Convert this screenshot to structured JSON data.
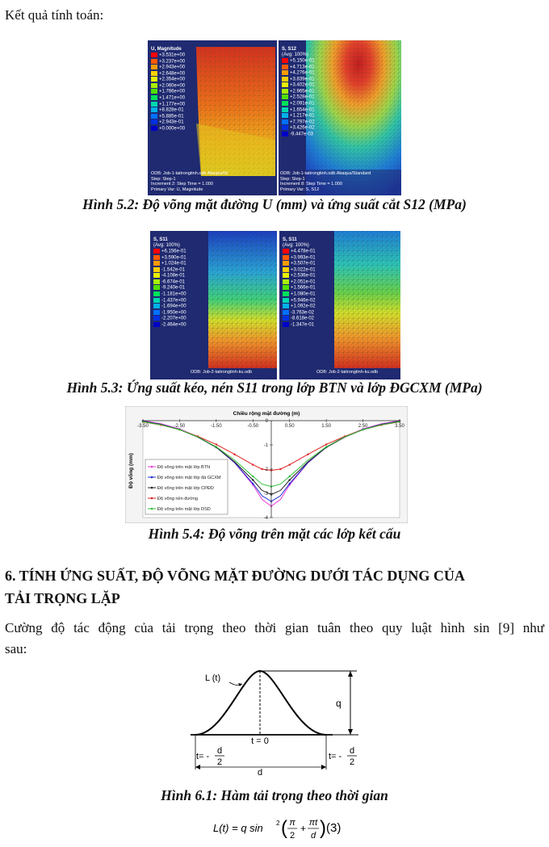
{
  "intro_text": "Kết quả tính toán:",
  "figure_5_2": {
    "caption": "Hình 5.2: Độ võng mặt đường U (mm) và ứng suất cắt S12 (MPa)",
    "left_panel": {
      "title": "U, Magnitude",
      "values": [
        "+3.531e+00",
        "+3.237e+00",
        "+2.943e+00",
        "+2.648e+00",
        "+2.354e+00",
        "+2.060e+00",
        "+1.766e+00",
        "+1.471e+00",
        "+1.177e+00",
        "+8.828e-01",
        "+5.885e-01",
        "+2.943e-01",
        "+0.000e+00"
      ],
      "footer": [
        "ODB: Job-1-taitrongtinh.odb    Abaqus/St",
        "Step: Step-1",
        "Increment    2: Step Time =   1.000",
        "Primary Var: U, Magnitude"
      ]
    },
    "right_panel": {
      "title": "S, S12",
      "subtitle": "(Avg: 100%)",
      "values": [
        "+5.150e-01",
        "+4.713e-01",
        "+4.276e-01",
        "+3.839e-01",
        "+3.402e-01",
        "+2.965e-01",
        "+2.528e-01",
        "+2.091e-01",
        "+1.654e-01",
        "+1.217e-01",
        "+7.797e-02",
        "+3.426e-02",
        "-9.447e-03"
      ],
      "footer": [
        "ODB: Job-1-taitrongtinh.odb    Abaqus/Standard",
        "Step: Step-1",
        "Increment    8: Step Time =   1.000",
        "Primary Var: S, S12"
      ]
    }
  },
  "figure_5_3": {
    "caption": "Hình 5.3: Ứng suất kéo, nén S11 trong lớp BTN và lớp ĐGCXM (MPa)",
    "left_panel": {
      "title": "S, S11",
      "subtitle": "(Avg: 100%)",
      "values": [
        "+6.156e-01",
        "+3.590e-01",
        "+1.024e-01",
        "-1.542e-01",
        "-4.108e-01",
        "-6.674e-01",
        "-9.240e-01",
        "-1.181e+00",
        "-1.437e+00",
        "-1.694e+00",
        "-1.950e+00",
        "-2.207e+00",
        "-2.464e+00"
      ],
      "footer": [
        "ODB: Job-2-taitrongtinh-ku.odb"
      ]
    },
    "right_panel": {
      "title": "S, S11",
      "subtitle": "(Avg: 100%)",
      "values": [
        "+4.478e-01",
        "+3.993e-01",
        "+3.507e-01",
        "+3.022e-01",
        "+2.536e-01",
        "+2.051e-01",
        "+1.566e-01",
        "+1.080e-01",
        "+5.946e-02",
        "+1.092e-02",
        "-3.763e-02",
        "-8.618e-02",
        "-1.347e-01"
      ],
      "footer": [
        "ODB: Job-2-taitrongtinh-ku.odb"
      ]
    }
  },
  "chart_data": {
    "type": "line",
    "title": "Chiều rộng mặt đường (m)",
    "xlabel": "",
    "ylabel": "Độ võng (mm)",
    "xlim": [
      -3.5,
      3.5
    ],
    "ylim": [
      -4,
      0
    ],
    "x_ticks": [
      "-3.50",
      "-2.50",
      "-1.50",
      "-0.50",
      "0.50",
      "1.50",
      "2.50",
      "3.50"
    ],
    "y_ticks": [
      "0",
      "-1",
      "-2",
      "-3",
      "-4"
    ],
    "legend_position": "bottom-left",
    "x": [
      -3.5,
      -3.0,
      -2.5,
      -2.0,
      -1.5,
      -1.0,
      -0.5,
      -0.25,
      0,
      0.25,
      0.5,
      1.0,
      1.5,
      2.0,
      2.5,
      3.0,
      3.5
    ],
    "series": [
      {
        "name": "Độ võng trên mặt lớp BTN",
        "color": "#e83ad8",
        "values": [
          0.0,
          -0.13,
          -0.34,
          -0.66,
          -1.09,
          -1.74,
          -2.65,
          -3.25,
          -3.53,
          -3.25,
          -2.65,
          -1.74,
          -1.09,
          -0.66,
          -0.34,
          -0.13,
          0.0
        ]
      },
      {
        "name": "Độ võng trên mặt lớp đá GCXM",
        "color": "#1f2bd6",
        "values": [
          -0.02,
          -0.15,
          -0.36,
          -0.68,
          -1.1,
          -1.73,
          -2.6,
          -3.1,
          -3.33,
          -3.1,
          -2.6,
          -1.73,
          -1.1,
          -0.68,
          -0.36,
          -0.15,
          -0.02
        ]
      },
      {
        "name": "Độ võng trên mặt lớp CPĐD",
        "color": "#222222",
        "values": [
          -0.03,
          -0.16,
          -0.37,
          -0.68,
          -1.1,
          -1.7,
          -2.45,
          -2.88,
          -3.05,
          -2.88,
          -2.45,
          -1.7,
          -1.1,
          -0.68,
          -0.37,
          -0.16,
          -0.03
        ]
      },
      {
        "name": "Độ võng nền đường",
        "color": "#e02020",
        "values": [
          -0.05,
          -0.18,
          -0.37,
          -0.65,
          -0.98,
          -1.39,
          -1.82,
          -2.0,
          -2.05,
          -2.0,
          -1.82,
          -1.39,
          -0.98,
          -0.65,
          -0.37,
          -0.18,
          -0.05
        ]
      },
      {
        "name": "Độ võng trên mặt lớp DSD",
        "color": "#2fbf3a",
        "values": [
          -0.04,
          -0.17,
          -0.37,
          -0.67,
          -1.08,
          -1.63,
          -2.3,
          -2.62,
          -2.72,
          -2.62,
          -2.3,
          -1.63,
          -1.08,
          -0.67,
          -0.37,
          -0.17,
          -0.04
        ]
      }
    ],
    "caption": "Hình 5.4: Độ võng trên mặt các lớp kết cấu"
  },
  "section6": {
    "heading_line1": "6. TÍNH ỨNG SUẤT, ĐỘ VÕNG MẶT ĐƯỜNG DƯỚI TÁC DỤNG CỦA",
    "heading_line2": "TẢI TRỌNG LẶP",
    "para_line1": "Cường độ tác động của tải trọng theo thời gian tuân theo quy luật hình sin [9] như",
    "para_line2": "sau:"
  },
  "figure_6_1": {
    "label_L": "L (t)",
    "label_q": "q",
    "label_t0": "t = 0",
    "label_t_left": "t= -",
    "label_t_right": "t= -",
    "frac_num": "d",
    "frac_den": "2",
    "label_d": "d",
    "caption": "Hình 6.1: Hàm tải trọng theo thời gian"
  },
  "equation": {
    "lhs": "L(t) = q sin",
    "sup": "2",
    "pi1": "π",
    "den1": "2",
    "plus": "+",
    "pi2": "πt",
    "den2": "d",
    "number": "(3)"
  }
}
